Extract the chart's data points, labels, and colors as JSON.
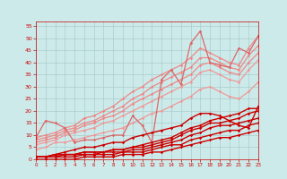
{
  "title": "",
  "xlim": [
    0,
    23
  ],
  "ylim": [
    0,
    57
  ],
  "yticks": [
    0,
    5,
    10,
    15,
    20,
    25,
    30,
    35,
    40,
    45,
    50,
    55
  ],
  "xticks": [
    0,
    1,
    2,
    3,
    4,
    5,
    6,
    7,
    8,
    9,
    10,
    11,
    12,
    13,
    14,
    15,
    16,
    17,
    18,
    19,
    20,
    21,
    22,
    23
  ],
  "bg_color": "#cdeaea",
  "grid_color": "#aacccc",
  "dark_red": "#cc0000",
  "light_red": "#ee8888",
  "series_light": [
    {
      "x": [
        0,
        1,
        2,
        3,
        4,
        5,
        6,
        7,
        8,
        9,
        10,
        11,
        12,
        13,
        14,
        15,
        16,
        17,
        18,
        19,
        20,
        21,
        22,
        23
      ],
      "y": [
        9,
        10,
        11,
        13,
        14,
        17,
        18,
        20,
        22,
        25,
        28,
        30,
        33,
        35,
        37,
        39,
        42,
        46,
        44,
        42,
        40,
        39,
        46,
        51
      ],
      "color": "#ee8888",
      "lw": 0.9
    },
    {
      "x": [
        0,
        1,
        2,
        3,
        4,
        5,
        6,
        7,
        8,
        9,
        10,
        11,
        12,
        13,
        14,
        15,
        16,
        17,
        18,
        19,
        20,
        21,
        22,
        23
      ],
      "y": [
        8,
        9,
        10,
        12,
        13,
        15,
        16,
        18,
        20,
        22,
        25,
        27,
        30,
        32,
        34,
        36,
        38,
        42,
        42,
        40,
        38,
        37,
        43,
        47
      ],
      "color": "#ee8888",
      "lw": 0.9
    },
    {
      "x": [
        0,
        1,
        2,
        3,
        4,
        5,
        6,
        7,
        8,
        9,
        10,
        11,
        12,
        13,
        14,
        15,
        16,
        17,
        18,
        19,
        20,
        21,
        22,
        23
      ],
      "y": [
        7,
        8,
        9,
        11,
        12,
        14,
        15,
        17,
        18,
        20,
        23,
        25,
        27,
        29,
        31,
        33,
        35,
        39,
        40,
        38,
        36,
        35,
        40,
        44
      ],
      "color": "#ee8888",
      "lw": 0.9
    },
    {
      "x": [
        0,
        1,
        2,
        3,
        4,
        5,
        6,
        7,
        8,
        9,
        10,
        11,
        12,
        13,
        14,
        15,
        16,
        17,
        18,
        19,
        20,
        21,
        22,
        23
      ],
      "y": [
        6,
        7,
        8,
        10,
        11,
        12,
        13,
        15,
        16,
        18,
        20,
        22,
        24,
        26,
        28,
        30,
        32,
        36,
        37,
        35,
        33,
        32,
        37,
        41
      ],
      "color": "#ee9999",
      "lw": 0.9
    },
    {
      "x": [
        0,
        1,
        2,
        3,
        4,
        5,
        6,
        7,
        8,
        9,
        10,
        11,
        12,
        13,
        14,
        15,
        16,
        17,
        18,
        19,
        20,
        21,
        22,
        23
      ],
      "y": [
        4,
        5,
        7,
        7,
        8,
        9,
        10,
        11,
        12,
        13,
        15,
        17,
        19,
        20,
        22,
        24,
        26,
        29,
        30,
        28,
        26,
        25,
        28,
        32
      ],
      "color": "#ee9999",
      "lw": 0.9
    },
    {
      "x": [
        0,
        1,
        2,
        3,
        4,
        5,
        6,
        7,
        8,
        9,
        10,
        11,
        12,
        13,
        14,
        15,
        16,
        17,
        18,
        19,
        20,
        21,
        22,
        23
      ],
      "y": [
        9,
        16,
        15,
        13,
        7,
        8,
        8,
        9,
        10,
        10,
        18,
        14,
        7,
        33,
        37,
        31,
        48,
        53,
        40,
        39,
        38,
        46,
        44,
        51
      ],
      "color": "#dd6666",
      "lw": 0.9
    }
  ],
  "series_dark": [
    {
      "x": [
        0,
        1,
        2,
        3,
        4,
        5,
        6,
        7,
        8,
        9,
        10,
        11,
        12,
        13,
        14,
        15,
        16,
        17,
        18,
        19,
        20,
        21,
        22,
        23
      ],
      "y": [
        1,
        1,
        2,
        2,
        2,
        3,
        3,
        3,
        4,
        4,
        5,
        6,
        7,
        8,
        9,
        11,
        13,
        14,
        16,
        17,
        18,
        19,
        21,
        21
      ],
      "color": "#cc0000",
      "lw": 1.0
    },
    {
      "x": [
        0,
        1,
        2,
        3,
        4,
        5,
        6,
        7,
        8,
        9,
        10,
        11,
        12,
        13,
        14,
        15,
        16,
        17,
        18,
        19,
        20,
        21,
        22,
        23
      ],
      "y": [
        1,
        1,
        2,
        2,
        2,
        3,
        3,
        3,
        4,
        4,
        5,
        5,
        6,
        7,
        8,
        10,
        12,
        13,
        15,
        15,
        16,
        17,
        19,
        20
      ],
      "color": "#cc0000",
      "lw": 1.0
    },
    {
      "x": [
        0,
        1,
        2,
        3,
        4,
        5,
        6,
        7,
        8,
        9,
        10,
        11,
        12,
        13,
        14,
        15,
        16,
        17,
        18,
        19,
        20,
        21,
        22,
        23
      ],
      "y": [
        1,
        1,
        1,
        2,
        2,
        2,
        2,
        3,
        3,
        3,
        4,
        4,
        5,
        6,
        7,
        8,
        10,
        11,
        13,
        14,
        14,
        15,
        16,
        17
      ],
      "color": "#cc0000",
      "lw": 1.0
    },
    {
      "x": [
        0,
        1,
        2,
        3,
        4,
        5,
        6,
        7,
        8,
        9,
        10,
        11,
        12,
        13,
        14,
        15,
        16,
        17,
        18,
        19,
        20,
        21,
        22,
        23
      ],
      "y": [
        1,
        1,
        1,
        1,
        1,
        2,
        2,
        2,
        2,
        3,
        3,
        3,
        4,
        5,
        6,
        6,
        8,
        9,
        10,
        11,
        12,
        12,
        14,
        15
      ],
      "color": "#cc0000",
      "lw": 1.0
    },
    {
      "x": [
        0,
        1,
        2,
        3,
        4,
        5,
        6,
        7,
        8,
        9,
        10,
        11,
        12,
        13,
        14,
        15,
        16,
        17,
        18,
        19,
        20,
        21,
        22,
        23
      ],
      "y": [
        0,
        0,
        0,
        0,
        0,
        1,
        1,
        1,
        1,
        2,
        2,
        2,
        3,
        3,
        4,
        5,
        6,
        7,
        8,
        9,
        9,
        10,
        11,
        12
      ],
      "color": "#cc0000",
      "lw": 1.0
    },
    {
      "x": [
        0,
        1,
        2,
        3,
        4,
        5,
        6,
        7,
        8,
        9,
        10,
        11,
        12,
        13,
        14,
        15,
        16,
        17,
        18,
        19,
        20,
        21,
        22,
        23
      ],
      "y": [
        1,
        1,
        2,
        3,
        4,
        5,
        5,
        6,
        7,
        7,
        9,
        10,
        11,
        12,
        13,
        14,
        17,
        19,
        19,
        18,
        16,
        14,
        13,
        22
      ],
      "color": "#cc0000",
      "lw": 1.0
    }
  ],
  "wind_arrows": [
    "↙",
    "↓",
    "↙",
    "←",
    "←",
    "↙",
    "↗",
    "↓",
    "↙",
    "↘",
    "→",
    "↙",
    "↓",
    "↘",
    "→",
    "↙",
    "↓",
    "↘",
    "↙",
    "→",
    "↘",
    "↘",
    "↙",
    "↘"
  ]
}
